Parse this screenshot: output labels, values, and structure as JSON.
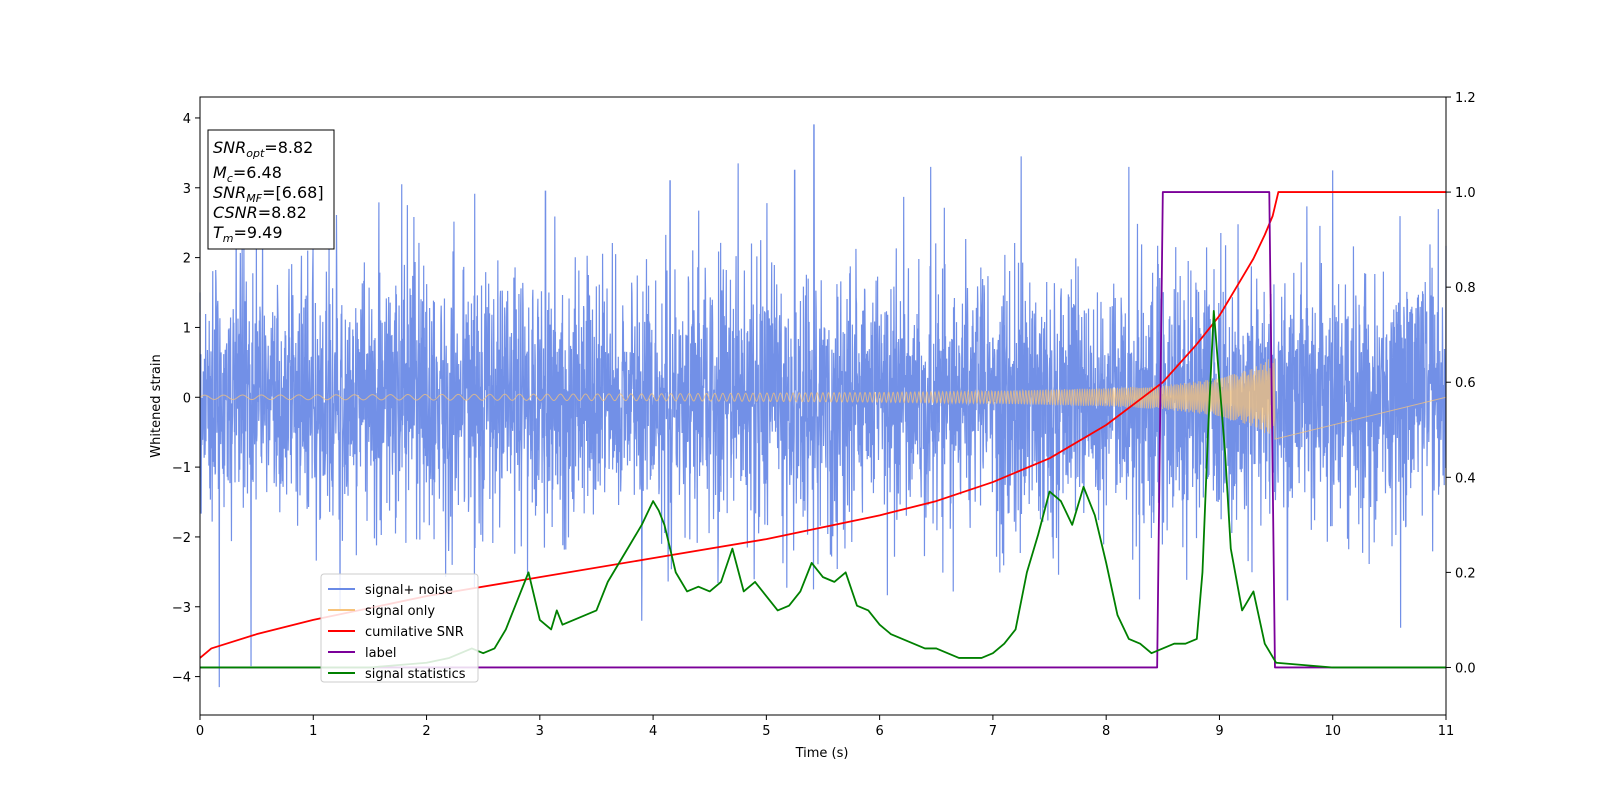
{
  "chart_data": {
    "type": "line",
    "title": "",
    "xlabel": "Time (s)",
    "ylabel": "Whitened strain",
    "xlim": [
      0,
      11
    ],
    "ylim": [
      -4.55,
      4.3
    ],
    "y2lim": [
      -0.1,
      1.2
    ],
    "x_ticks": [
      0,
      1,
      2,
      3,
      4,
      5,
      6,
      7,
      8,
      9,
      10,
      11
    ],
    "y_ticks": [
      4,
      3,
      2,
      1,
      0,
      -1,
      -2,
      -3,
      -4
    ],
    "y_tick_labels": [
      "4",
      "3",
      "2",
      "1",
      "0",
      "−1",
      "−2",
      "−3",
      "−4"
    ],
    "y2_ticks": [
      1.2,
      1.0,
      0.8,
      0.6,
      0.4,
      0.2,
      0.0
    ],
    "y2_tick_labels": [
      "1.2",
      "1.0",
      "0.8",
      "0.6",
      "0.4",
      "0.2",
      "0.0"
    ],
    "grid": false,
    "legend_position": "lower-left",
    "info_box": {
      "lines": [
        {
          "name": "SNR",
          "sub": "opt",
          "value": "=8.82"
        },
        {
          "name": "M",
          "sub": "c",
          "value": "=6.48"
        },
        {
          "name": "SNR",
          "sub": "MF",
          "value": "=[6.68]"
        },
        {
          "name": "CSNR",
          "sub": "",
          "value": "=8.82"
        },
        {
          "name": "T",
          "sub": "m",
          "value": "=9.49"
        }
      ]
    },
    "series": [
      {
        "name": "signal+ noise",
        "axis": "left",
        "color": "#6a8ae6",
        "noise_sigma": 1.0,
        "peaks": [
          [
            0.17,
            -4.15
          ],
          [
            0.45,
            -3.85
          ],
          [
            1.78,
            3.05
          ],
          [
            3.05,
            2.95
          ],
          [
            3.9,
            -3.2
          ],
          [
            4.15,
            3.1
          ],
          [
            4.75,
            3.35
          ],
          [
            5.42,
            3.9
          ],
          [
            5.25,
            3.25
          ],
          [
            6.45,
            3.3
          ],
          [
            7.25,
            3.45
          ],
          [
            8.2,
            3.3
          ],
          [
            9.6,
            -2.9
          ],
          [
            10.0,
            3.25
          ],
          [
            10.6,
            -3.3
          ]
        ]
      },
      {
        "name": "signal only",
        "axis": "left",
        "color": "#f7c37a",
        "envelope": [
          [
            0,
            0.03
          ],
          [
            2,
            0.04
          ],
          [
            4,
            0.05
          ],
          [
            6,
            0.07
          ],
          [
            7,
            0.09
          ],
          [
            8,
            0.13
          ],
          [
            8.5,
            0.17
          ],
          [
            9.0,
            0.27
          ],
          [
            9.3,
            0.42
          ],
          [
            9.49,
            0.6
          ]
        ],
        "end_time": 9.49
      },
      {
        "name": "cumilative SNR",
        "axis": "right",
        "color": "#ff0000",
        "x": [
          0,
          0.1,
          0.5,
          1,
          2,
          3,
          4,
          5,
          6,
          6.5,
          7,
          7.5,
          8,
          8.5,
          8.8,
          9.0,
          9.2,
          9.3,
          9.4,
          9.47,
          9.49,
          9.52,
          11
        ],
        "y": [
          0.02,
          0.04,
          0.07,
          0.1,
          0.15,
          0.19,
          0.23,
          0.27,
          0.32,
          0.35,
          0.39,
          0.44,
          0.51,
          0.6,
          0.68,
          0.74,
          0.82,
          0.86,
          0.91,
          0.95,
          0.97,
          1.0,
          1.0
        ]
      },
      {
        "name": "label",
        "axis": "right",
        "color": "#7b0099",
        "x": [
          0,
          8.45,
          8.5,
          9.44,
          9.49,
          11
        ],
        "y": [
          0.0,
          0.0,
          1.0,
          1.0,
          0.0,
          0.0
        ]
      },
      {
        "name": "signal statistics",
        "axis": "right",
        "color": "#008000",
        "x": [
          0,
          0.5,
          1.0,
          1.5,
          2.0,
          2.2,
          2.4,
          2.5,
          2.6,
          2.7,
          2.8,
          2.9,
          3.0,
          3.1,
          3.15,
          3.2,
          3.3,
          3.4,
          3.5,
          3.6,
          3.7,
          3.8,
          3.9,
          4.0,
          4.05,
          4.1,
          4.2,
          4.3,
          4.4,
          4.5,
          4.6,
          4.7,
          4.8,
          4.9,
          5.0,
          5.1,
          5.2,
          5.3,
          5.4,
          5.5,
          5.6,
          5.7,
          5.8,
          5.9,
          6.0,
          6.1,
          6.2,
          6.3,
          6.4,
          6.5,
          6.6,
          6.7,
          6.8,
          6.9,
          7.0,
          7.1,
          7.2,
          7.3,
          7.4,
          7.5,
          7.6,
          7.7,
          7.8,
          7.9,
          8.0,
          8.1,
          8.2,
          8.3,
          8.4,
          8.5,
          8.6,
          8.7,
          8.8,
          8.85,
          8.9,
          8.95,
          9.0,
          9.05,
          9.1,
          9.2,
          9.3,
          9.4,
          9.5,
          10.0,
          11.0
        ],
        "y": [
          0.0,
          0.0,
          0.0,
          0.0,
          0.01,
          0.02,
          0.04,
          0.03,
          0.04,
          0.08,
          0.14,
          0.2,
          0.1,
          0.08,
          0.12,
          0.09,
          0.1,
          0.11,
          0.12,
          0.18,
          0.22,
          0.26,
          0.3,
          0.35,
          0.33,
          0.3,
          0.2,
          0.16,
          0.17,
          0.16,
          0.18,
          0.25,
          0.16,
          0.18,
          0.15,
          0.12,
          0.13,
          0.16,
          0.22,
          0.19,
          0.18,
          0.2,
          0.13,
          0.12,
          0.09,
          0.07,
          0.06,
          0.05,
          0.04,
          0.04,
          0.03,
          0.02,
          0.02,
          0.02,
          0.03,
          0.05,
          0.08,
          0.2,
          0.28,
          0.37,
          0.35,
          0.3,
          0.38,
          0.32,
          0.22,
          0.11,
          0.06,
          0.05,
          0.03,
          0.04,
          0.05,
          0.05,
          0.06,
          0.2,
          0.5,
          0.75,
          0.6,
          0.45,
          0.25,
          0.12,
          0.16,
          0.05,
          0.01,
          0.0,
          0.0
        ]
      }
    ]
  }
}
